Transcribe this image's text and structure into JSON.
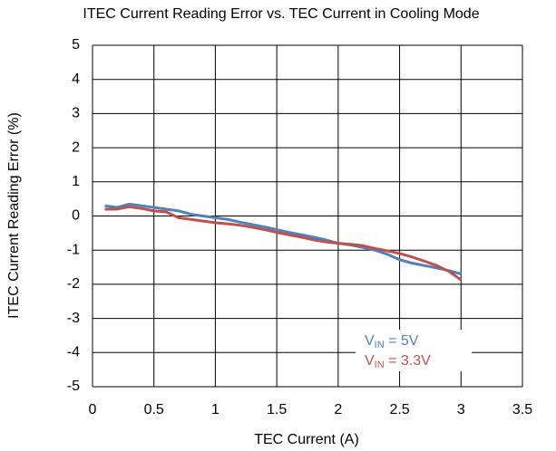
{
  "chart_data": {
    "type": "line",
    "title": "ITEC Current Reading Error vs. TEC Current in Cooling Mode",
    "x_label": "TEC Current (A)",
    "y_label": "ITEC Current Reading Error (%)",
    "x": [
      0.1,
      0.2,
      0.3,
      0.4,
      0.5,
      0.6,
      0.7,
      0.8,
      0.9,
      1.0,
      1.1,
      1.2,
      1.3,
      1.4,
      1.5,
      1.6,
      1.7,
      1.8,
      1.9,
      2.0,
      2.1,
      2.2,
      2.3,
      2.4,
      2.5,
      2.6,
      2.7,
      2.8,
      2.9,
      3.0
    ],
    "series": [
      {
        "name": "VIN = 5V",
        "color": "#4f81bd",
        "values": [
          0.3,
          0.25,
          0.35,
          0.3,
          0.25,
          0.2,
          0.15,
          0.05,
          0,
          -0.05,
          -0.1,
          -0.18,
          -0.25,
          -0.32,
          -0.4,
          -0.48,
          -0.55,
          -0.62,
          -0.7,
          -0.8,
          -0.85,
          -0.92,
          -1.0,
          -1.12,
          -1.28,
          -1.38,
          -1.45,
          -1.52,
          -1.6,
          -1.7
        ]
      },
      {
        "name": "VIN = 3.3V",
        "color": "#c0504d",
        "values": [
          0.2,
          0.2,
          0.27,
          0.22,
          0.15,
          0.12,
          -0.05,
          -0.1,
          -0.15,
          -0.2,
          -0.23,
          -0.27,
          -0.33,
          -0.4,
          -0.48,
          -0.55,
          -0.62,
          -0.7,
          -0.76,
          -0.8,
          -0.83,
          -0.87,
          -0.95,
          -1.02,
          -1.1,
          -1.2,
          -1.32,
          -1.45,
          -1.62,
          -1.87
        ]
      }
    ],
    "xlim": [
      0,
      3.5
    ],
    "xticks": [
      0,
      0.5,
      1,
      1.5,
      2,
      2.5,
      3,
      3.5
    ],
    "ylim": [
      -5,
      5
    ],
    "yticks": [
      -5,
      -4,
      -3,
      -2,
      -1,
      0,
      1,
      2,
      3,
      4,
      5
    ],
    "grid": true
  }
}
